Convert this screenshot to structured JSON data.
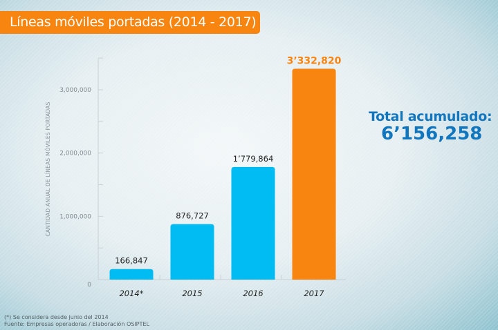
{
  "chart_data": {
    "type": "bar",
    "title": "Líneas móviles portadas (2014 - 2017)",
    "xlabel": "",
    "ylabel": "CANTIDAD ANUAL DE LÍNEAS MÓVILES PORTADAS",
    "categories": [
      "2014*",
      "2015",
      "2016",
      "2017"
    ],
    "values": [
      166847,
      876727,
      1779864,
      3332820
    ],
    "value_labels": [
      "166,847",
      "876,727",
      "1’779,864",
      "3’332,820"
    ],
    "bar_colors": [
      "#00bcf2",
      "#00bcf2",
      "#00bcf2",
      "#f7850f"
    ],
    "highlight_index": 3,
    "ylim": [
      0,
      3500000
    ],
    "yticks": [
      0,
      1000000,
      2000000,
      3000000
    ],
    "ytick_labels": [
      "0",
      "1,000,000",
      "2,000,000",
      "3,000,000"
    ],
    "minor_yticks": [
      500000,
      1500000,
      2500000,
      3500000
    ],
    "grid": false,
    "legend": "none"
  },
  "total": {
    "label": "Total acumulado:",
    "value": "6’156,258"
  },
  "footnotes": {
    "note": "(*) Se considera desde junio del 2014",
    "source": "Fuente: Empresas operadoras / Elaboración OSIPTEL"
  },
  "colors": {
    "accent_orange": "#f7850f",
    "bar_blue": "#00bcf2",
    "total_blue": "#1176bd"
  }
}
